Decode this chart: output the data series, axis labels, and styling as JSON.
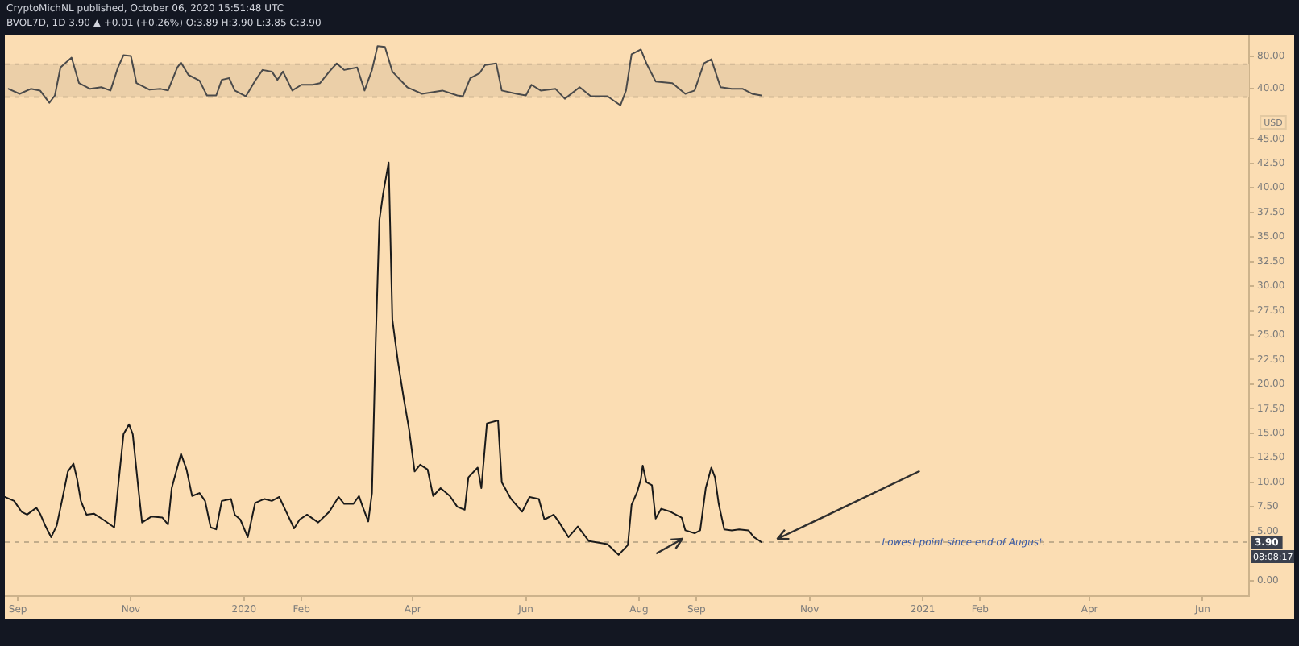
{
  "chart_data": [
    {
      "type": "line",
      "title": "CryptoMichNL published, October 06, 2020 15:51:48 UTC",
      "subtitle": "BVOL7D, 1D 3.90 ▲ +0.01 (+0.26%) O:3.89 H:3.90 L:3.85 C:3.90",
      "series": [
        {
          "color": "#4a4a4a",
          "x": [
            "2019-08-27",
            "2019-09-02",
            "2019-09-08",
            "2019-09-13",
            "2019-09-18",
            "2019-09-21",
            "2019-09-24",
            "2019-09-30",
            "2019-10-04",
            "2019-10-10",
            "2019-10-16",
            "2019-10-21",
            "2019-10-25",
            "2019-10-28",
            "2019-11-01",
            "2019-11-04",
            "2019-11-11",
            "2019-11-17",
            "2019-11-21",
            "2019-11-26",
            "2019-11-28",
            "2019-12-02",
            "2019-12-08",
            "2019-12-12",
            "2019-12-17",
            "2019-12-20",
            "2019-12-24",
            "2019-12-27",
            "2020-01-02",
            "2020-01-07",
            "2020-01-11",
            "2020-01-16",
            "2020-01-19",
            "2020-01-22",
            "2020-01-27",
            "2020-02-01",
            "2020-02-07",
            "2020-02-11",
            "2020-02-16",
            "2020-02-20",
            "2020-02-24",
            "2020-03-02",
            "2020-03-06",
            "2020-03-10",
            "2020-03-13",
            "2020-03-17",
            "2020-03-21",
            "2020-03-29",
            "2020-04-06",
            "2020-04-17",
            "2020-04-25",
            "2020-04-28",
            "2020-05-02",
            "2020-05-07",
            "2020-05-10",
            "2020-05-16",
            "2020-05-19",
            "2020-05-27",
            "2020-06-01",
            "2020-06-04",
            "2020-06-09",
            "2020-06-17",
            "2020-06-22",
            "2020-06-30",
            "2020-07-06",
            "2020-07-15",
            "2020-07-22",
            "2020-07-25",
            "2020-07-28",
            "2020-08-02",
            "2020-08-05",
            "2020-08-10",
            "2020-08-19",
            "2020-08-26",
            "2020-08-31",
            "2020-09-05",
            "2020-09-09",
            "2020-09-14",
            "2020-09-20",
            "2020-09-26",
            "2020-10-01",
            "2020-10-06"
          ],
          "values": [
            40,
            34,
            40,
            38,
            23,
            32,
            66,
            78,
            47,
            40,
            42,
            38,
            66,
            81,
            80,
            47,
            39,
            40,
            38,
            66,
            72,
            57,
            50,
            32,
            32,
            51,
            53,
            38,
            31,
            50,
            63,
            61,
            51,
            61,
            38,
            45,
            45,
            47,
            61,
            71,
            63,
            66,
            38,
            63,
            92,
            91,
            61,
            42,
            34,
            38,
            32,
            31,
            53,
            59,
            69,
            71,
            38,
            34,
            32,
            45,
            38,
            40,
            28,
            42,
            31,
            31,
            20,
            38,
            82,
            88,
            71,
            49,
            47,
            34,
            38,
            71,
            76,
            42,
            40,
            40,
            34,
            32
          ]
        }
      ],
      "xlim": [
        "2019-08-25",
        "2021-06-26"
      ],
      "ylim": [
        9,
        105
      ],
      "yticks": [
        {
          "value": 80,
          "label": "80.00"
        },
        {
          "value": 40,
          "label": "40.00"
        }
      ],
      "bands": [
        {
          "axis": "y",
          "from": 30,
          "to": 70,
          "color": "#ebcfa8"
        }
      ],
      "ref_lines": [
        {
          "axis": "y",
          "value": 70,
          "color": "#cdb592",
          "line_style": "dashed"
        },
        {
          "axis": "y",
          "value": 30,
          "color": "#cdb592",
          "line_style": "dashed"
        }
      ],
      "tick_labels": "y"
    },
    {
      "type": "line",
      "ylabel": "USD",
      "series": [
        {
          "color": "#1a1a1a",
          "x": [
            "2019-08-25",
            "2019-08-30",
            "2019-09-03",
            "2019-09-06",
            "2019-09-11",
            "2019-09-13",
            "2019-09-16",
            "2019-09-19",
            "2019-09-22",
            "2019-09-25",
            "2019-09-28",
            "2019-10-01",
            "2019-10-03",
            "2019-10-05",
            "2019-10-08",
            "2019-10-12",
            "2019-10-17",
            "2019-10-23",
            "2019-10-25",
            "2019-10-28",
            "2019-10-31",
            "2019-11-02",
            "2019-11-05",
            "2019-11-07",
            "2019-11-12",
            "2019-11-18",
            "2019-11-21",
            "2019-11-23",
            "2019-11-28",
            "2019-12-01",
            "2019-12-04",
            "2019-12-08",
            "2019-12-11",
            "2019-12-14",
            "2019-12-17",
            "2019-12-20",
            "2019-12-25",
            "2019-12-27",
            "2019-12-30",
            "2020-01-03",
            "2020-01-07",
            "2020-01-12",
            "2020-01-16",
            "2020-01-20",
            "2020-01-23",
            "2020-01-28",
            "2020-01-31",
            "2020-02-04",
            "2020-02-10",
            "2020-02-16",
            "2020-02-21",
            "2020-02-24",
            "2020-02-29",
            "2020-03-03",
            "2020-03-05",
            "2020-03-08",
            "2020-03-10",
            "2020-03-12",
            "2020-03-14",
            "2020-03-16",
            "2020-03-19",
            "2020-03-21",
            "2020-03-24",
            "2020-03-27",
            "2020-03-30",
            "2020-04-02",
            "2020-04-05",
            "2020-04-09",
            "2020-04-12",
            "2020-04-16",
            "2020-04-21",
            "2020-04-25",
            "2020-04-29",
            "2020-05-01",
            "2020-05-06",
            "2020-05-08",
            "2020-05-11",
            "2020-05-17",
            "2020-05-19",
            "2020-05-24",
            "2020-05-30",
            "2020-06-03",
            "2020-06-08",
            "2020-06-11",
            "2020-06-16",
            "2020-06-19",
            "2020-06-24",
            "2020-06-29",
            "2020-07-05",
            "2020-07-15",
            "2020-07-21",
            "2020-07-26",
            "2020-07-28",
            "2020-07-31",
            "2020-08-02",
            "2020-08-03",
            "2020-08-05",
            "2020-08-08",
            "2020-08-10",
            "2020-08-13",
            "2020-08-18",
            "2020-08-24",
            "2020-08-26",
            "2020-08-31",
            "2020-09-03",
            "2020-09-06",
            "2020-09-09",
            "2020-09-11",
            "2020-09-13",
            "2020-09-16",
            "2020-09-20",
            "2020-09-24",
            "2020-09-29",
            "2020-10-02",
            "2020-10-06"
          ],
          "values": [
            8.5,
            8.1,
            7.0,
            6.7,
            7.4,
            6.8,
            5.5,
            4.4,
            5.6,
            8.3,
            11.1,
            11.9,
            10.3,
            8.1,
            6.7,
            6.8,
            6.2,
            5.4,
            9.4,
            14.9,
            15.9,
            14.9,
            9.4,
            5.9,
            6.5,
            6.4,
            5.7,
            9.4,
            12.9,
            11.3,
            8.6,
            8.9,
            8.1,
            5.4,
            5.2,
            8.1,
            8.3,
            6.7,
            6.2,
            4.4,
            7.9,
            8.3,
            8.1,
            8.5,
            7.3,
            5.3,
            6.2,
            6.7,
            5.9,
            7.0,
            8.5,
            7.8,
            7.8,
            8.6,
            7.5,
            6.0,
            8.9,
            24.2,
            36.7,
            39.4,
            42.6,
            26.6,
            22.3,
            18.7,
            15.4,
            11.1,
            11.8,
            11.3,
            8.6,
            9.4,
            8.6,
            7.5,
            7.2,
            10.5,
            11.5,
            9.4,
            16.0,
            16.3,
            10.0,
            8.3,
            7.0,
            8.5,
            8.3,
            6.2,
            6.7,
            5.9,
            4.4,
            5.5,
            4.0,
            3.7,
            2.6,
            3.6,
            7.7,
            9.0,
            10.3,
            11.7,
            10.0,
            9.7,
            6.3,
            7.3,
            7.0,
            6.4,
            5.1,
            4.8,
            5.1,
            9.4,
            11.5,
            10.5,
            7.8,
            5.2,
            5.1,
            5.2,
            5.1,
            4.4,
            3.9
          ]
        }
      ],
      "xlim": [
        "2019-08-25",
        "2021-06-26"
      ],
      "xticks": [
        {
          "value": "2019-09-01",
          "label": "Sep"
        },
        {
          "value": "2019-11-01",
          "label": "Nov"
        },
        {
          "value": "2020-01-01",
          "label": "2020"
        },
        {
          "value": "2020-02-01",
          "label": "Feb"
        },
        {
          "value": "2020-04-01",
          "label": "Apr"
        },
        {
          "value": "2020-06-01",
          "label": "Jun"
        },
        {
          "value": "2020-08-01",
          "label": "Aug"
        },
        {
          "value": "2020-09-01",
          "label": "Sep"
        },
        {
          "value": "2020-11-01",
          "label": "Nov"
        },
        {
          "value": "2021-01-01",
          "label": "2021"
        },
        {
          "value": "2021-02-01",
          "label": "Feb"
        },
        {
          "value": "2021-04-01",
          "label": "Apr"
        },
        {
          "value": "2021-06-01",
          "label": "Jun"
        }
      ],
      "ylim": [
        -1.6,
        47.5
      ],
      "yticks": [
        {
          "value": 0,
          "label": "0.00"
        },
        {
          "value": 5,
          "label": "5.00"
        },
        {
          "value": 7.5,
          "label": "7.50"
        },
        {
          "value": 10,
          "label": "10.00"
        },
        {
          "value": 12.5,
          "label": "12.50"
        },
        {
          "value": 15,
          "label": "15.00"
        },
        {
          "value": 17.5,
          "label": "17.50"
        },
        {
          "value": 20,
          "label": "20.00"
        },
        {
          "value": 22.5,
          "label": "22.50"
        },
        {
          "value": 25,
          "label": "25.00"
        },
        {
          "value": 27.5,
          "label": "27.50"
        },
        {
          "value": 30,
          "label": "30.00"
        },
        {
          "value": 32.5,
          "label": "32.50"
        },
        {
          "value": 35,
          "label": "35.00"
        },
        {
          "value": 37.5,
          "label": "37.50"
        },
        {
          "value": 40,
          "label": "40.00"
        },
        {
          "value": 42.5,
          "label": "42.50"
        },
        {
          "value": 45,
          "label": "45.00"
        }
      ],
      "ref_lines": [
        {
          "axis": "y",
          "value": 3.9,
          "label": "3.90",
          "color": "#c2ad8c",
          "line_style": "dashed"
        }
      ],
      "annotations": [
        "Lowest point since end of August.",
        "08:08:17"
      ]
    }
  ]
}
